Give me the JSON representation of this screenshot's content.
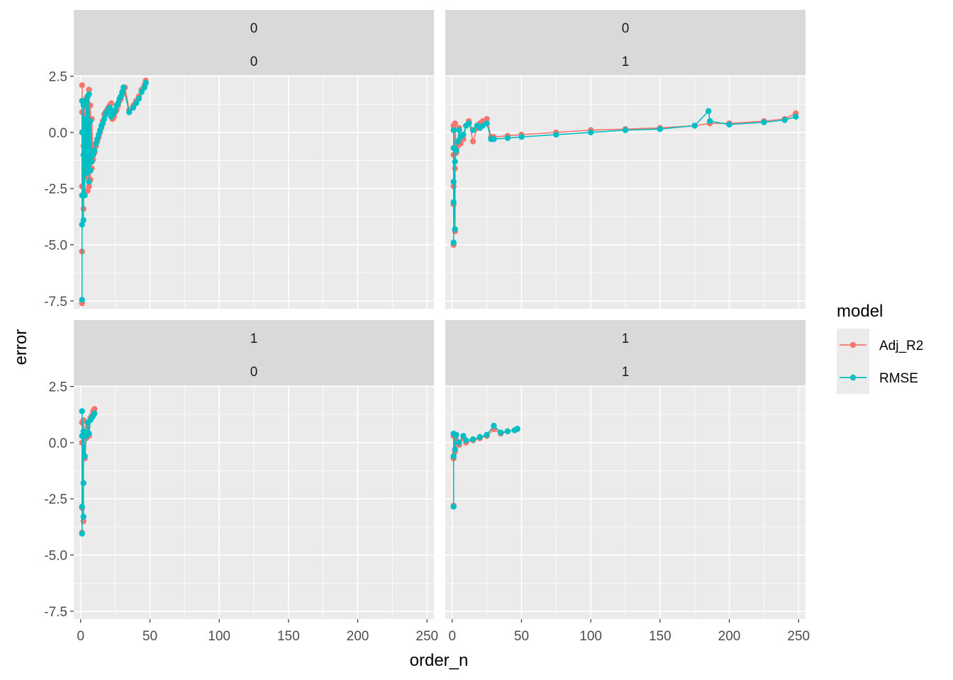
{
  "chart_data": {
    "type": "line",
    "xlabel": "order_n",
    "ylabel": "error",
    "xlim": [
      -5,
      255
    ],
    "ylim": [
      -7.85,
      2.55
    ],
    "x_ticks": [
      0,
      50,
      100,
      150,
      200,
      250
    ],
    "x_tick_labels": [
      "0",
      "50",
      "100",
      "150",
      "200",
      "250"
    ],
    "y_ticks": [
      -7.5,
      -5.0,
      -2.5,
      0.0,
      2.5
    ],
    "y_tick_labels": [
      "-7.5",
      "-5.0",
      "-2.5",
      "0.0",
      "2.5"
    ],
    "grid": true,
    "legend": {
      "title": "model",
      "placement": "right",
      "entries": [
        {
          "name": "Adj_R2",
          "color": "#F8766D"
        },
        {
          "name": "RMSE",
          "color": "#00BFC4"
        }
      ]
    },
    "panels": [
      {
        "row_label_top": "0",
        "row_label_bottom": "0",
        "series": [
          {
            "name": "Adj_R2",
            "color": "#F8766D",
            "points": [
              [
                1,
                -7.6
              ],
              [
                1,
                -5.3
              ],
              [
                1,
                -2.4
              ],
              [
                1,
                0.9
              ],
              [
                1,
                2.1
              ],
              [
                2,
                -3.4
              ],
              [
                2,
                -0.6
              ],
              [
                2,
                1.3
              ],
              [
                3,
                -2.0
              ],
              [
                3,
                1.2
              ],
              [
                4,
                -1.3
              ],
              [
                4,
                1.5
              ],
              [
                5,
                -2.6
              ],
              [
                5,
                -0.4
              ],
              [
                5,
                1.6
              ],
              [
                6,
                -2.4
              ],
              [
                6,
                1.9
              ],
              [
                7,
                -2.1
              ],
              [
                7,
                1.2
              ],
              [
                8,
                -1.6
              ],
              [
                8,
                0.6
              ],
              [
                9,
                -1.2
              ],
              [
                10,
                -0.9
              ],
              [
                11,
                -0.6
              ],
              [
                12,
                -0.4
              ],
              [
                13,
                -0.2
              ],
              [
                14,
                0.0
              ],
              [
                15,
                0.2
              ],
              [
                16,
                0.5
              ],
              [
                17,
                0.8
              ],
              [
                18,
                0.9
              ],
              [
                19,
                1.0
              ],
              [
                20,
                1.1
              ],
              [
                21,
                1.2
              ],
              [
                22,
                1.3
              ],
              [
                23,
                0.6
              ],
              [
                24,
                0.7
              ],
              [
                25,
                0.9
              ],
              [
                26,
                1.0
              ],
              [
                27,
                1.2
              ],
              [
                28,
                1.4
              ],
              [
                29,
                1.5
              ],
              [
                30,
                1.7
              ],
              [
                31,
                1.9
              ],
              [
                32,
                2.0
              ],
              [
                35,
                1.0
              ],
              [
                38,
                1.2
              ],
              [
                40,
                1.4
              ],
              [
                42,
                1.6
              ],
              [
                44,
                1.9
              ],
              [
                46,
                2.1
              ],
              [
                47,
                2.3
              ]
            ]
          },
          {
            "name": "RMSE",
            "color": "#00BFC4",
            "points": [
              [
                1,
                -7.45
              ],
              [
                1,
                -4.1
              ],
              [
                1,
                -2.8
              ],
              [
                1,
                0.0
              ],
              [
                1,
                1.4
              ],
              [
                2,
                -3.9
              ],
              [
                2,
                -1.0
              ],
              [
                2,
                1.2
              ],
              [
                3,
                -2.8
              ],
              [
                3,
                0.6
              ],
              [
                4,
                -1.8
              ],
              [
                4,
                1.4
              ],
              [
                5,
                -1.5
              ],
              [
                5,
                1.6
              ],
              [
                6,
                -2.2
              ],
              [
                6,
                1.7
              ],
              [
                7,
                -1.7
              ],
              [
                7,
                0.5
              ],
              [
                8,
                -1.3
              ],
              [
                9,
                -1.0
              ],
              [
                10,
                -0.8
              ],
              [
                11,
                -0.5
              ],
              [
                12,
                -0.3
              ],
              [
                13,
                -0.1
              ],
              [
                14,
                0.1
              ],
              [
                15,
                0.3
              ],
              [
                16,
                0.4
              ],
              [
                17,
                0.6
              ],
              [
                18,
                0.8
              ],
              [
                19,
                0.9
              ],
              [
                20,
                1.0
              ],
              [
                21,
                1.1
              ],
              [
                22,
                0.7
              ],
              [
                23,
                0.8
              ],
              [
                24,
                0.9
              ],
              [
                25,
                1.0
              ],
              [
                26,
                1.2
              ],
              [
                27,
                1.3
              ],
              [
                28,
                1.5
              ],
              [
                29,
                1.6
              ],
              [
                30,
                1.8
              ],
              [
                31,
                2.0
              ],
              [
                35,
                0.9
              ],
              [
                38,
                1.1
              ],
              [
                40,
                1.3
              ],
              [
                42,
                1.5
              ],
              [
                44,
                1.8
              ],
              [
                46,
                2.0
              ],
              [
                47,
                2.2
              ]
            ]
          }
        ]
      },
      {
        "row_label_top": "0",
        "row_label_bottom": "1",
        "series": [
          {
            "name": "Adj_R2",
            "color": "#F8766D",
            "points": [
              [
                1,
                -5.0
              ],
              [
                1,
                -3.2
              ],
              [
                1,
                -2.4
              ],
              [
                1,
                -1.0
              ],
              [
                1,
                0.3
              ],
              [
                2,
                -4.4
              ],
              [
                2,
                -1.6
              ],
              [
                2,
                0.4
              ],
              [
                3,
                -0.9
              ],
              [
                4,
                -0.6
              ],
              [
                5,
                0.2
              ],
              [
                6,
                -0.5
              ],
              [
                8,
                -0.3
              ],
              [
                10,
                0.3
              ],
              [
                12,
                0.5
              ],
              [
                15,
                -0.4
              ],
              [
                18,
                0.2
              ],
              [
                20,
                0.4
              ],
              [
                22,
                0.5
              ],
              [
                25,
                0.6
              ],
              [
                28,
                -0.2
              ],
              [
                30,
                -0.2
              ],
              [
                40,
                -0.15
              ],
              [
                50,
                -0.1
              ],
              [
                75,
                0.0
              ],
              [
                100,
                0.1
              ],
              [
                125,
                0.15
              ],
              [
                150,
                0.2
              ],
              [
                175,
                0.3
              ],
              [
                186,
                0.4
              ],
              [
                200,
                0.4
              ],
              [
                225,
                0.5
              ],
              [
                240,
                0.6
              ],
              [
                248,
                0.85
              ]
            ]
          },
          {
            "name": "RMSE",
            "color": "#00BFC4",
            "points": [
              [
                1,
                -4.9
              ],
              [
                1,
                -3.1
              ],
              [
                1,
                -2.2
              ],
              [
                1,
                -0.7
              ],
              [
                1,
                0.1
              ],
              [
                2,
                -4.3
              ],
              [
                2,
                -1.3
              ],
              [
                3,
                -0.8
              ],
              [
                4,
                -0.4
              ],
              [
                5,
                0.1
              ],
              [
                6,
                -0.2
              ],
              [
                8,
                -0.1
              ],
              [
                10,
                0.3
              ],
              [
                12,
                0.4
              ],
              [
                15,
                0.1
              ],
              [
                18,
                0.3
              ],
              [
                20,
                0.2
              ],
              [
                22,
                0.3
              ],
              [
                25,
                0.4
              ],
              [
                28,
                -0.3
              ],
              [
                30,
                -0.3
              ],
              [
                40,
                -0.25
              ],
              [
                50,
                -0.2
              ],
              [
                75,
                -0.1
              ],
              [
                100,
                0.0
              ],
              [
                125,
                0.1
              ],
              [
                150,
                0.15
              ],
              [
                175,
                0.3
              ],
              [
                185,
                0.95
              ],
              [
                186,
                0.5
              ],
              [
                200,
                0.35
              ],
              [
                225,
                0.45
              ],
              [
                240,
                0.55
              ],
              [
                248,
                0.7
              ]
            ]
          }
        ]
      },
      {
        "row_label_top": "1",
        "row_label_bottom": "0",
        "series": [
          {
            "name": "Adj_R2",
            "color": "#F8766D",
            "points": [
              [
                1,
                -4.0
              ],
              [
                1,
                -2.9
              ],
              [
                1,
                0.0
              ],
              [
                1,
                0.9
              ],
              [
                2,
                -3.5
              ],
              [
                2,
                -1.8
              ],
              [
                2,
                1.0
              ],
              [
                3,
                -0.7
              ],
              [
                4,
                0.2
              ],
              [
                5,
                0.7
              ],
              [
                6,
                0.3
              ],
              [
                7,
                1.1
              ],
              [
                8,
                1.2
              ],
              [
                9,
                1.4
              ],
              [
                10,
                1.5
              ]
            ]
          },
          {
            "name": "RMSE",
            "color": "#00BFC4",
            "points": [
              [
                1,
                -4.05
              ],
              [
                1,
                -2.85
              ],
              [
                1,
                0.3
              ],
              [
                1,
                1.4
              ],
              [
                2,
                -3.3
              ],
              [
                2,
                -1.8
              ],
              [
                2,
                0.5
              ],
              [
                3,
                -0.6
              ],
              [
                4,
                0.3
              ],
              [
                5,
                0.9
              ],
              [
                6,
                0.4
              ],
              [
                7,
                1.0
              ],
              [
                8,
                1.1
              ],
              [
                9,
                1.2
              ],
              [
                10,
                1.3
              ]
            ]
          }
        ]
      },
      {
        "row_label_top": "1",
        "row_label_bottom": "1",
        "series": [
          {
            "name": "Adj_R2",
            "color": "#F8766D",
            "points": [
              [
                1,
                -2.8
              ],
              [
                1,
                -0.7
              ],
              [
                1,
                0.3
              ],
              [
                2,
                -0.4
              ],
              [
                3,
                0.1
              ],
              [
                5,
                -0.1
              ],
              [
                8,
                0.2
              ],
              [
                10,
                0.0
              ],
              [
                15,
                0.1
              ],
              [
                20,
                0.2
              ],
              [
                25,
                0.3
              ],
              [
                30,
                0.6
              ],
              [
                35,
                0.4
              ],
              [
                40,
                0.5
              ],
              [
                45,
                0.55
              ],
              [
                47,
                0.6
              ]
            ]
          },
          {
            "name": "RMSE",
            "color": "#00BFC4",
            "points": [
              [
                1,
                -2.85
              ],
              [
                1,
                -0.6
              ],
              [
                1,
                0.4
              ],
              [
                2,
                -0.3
              ],
              [
                3,
                0.35
              ],
              [
                5,
                0.0
              ],
              [
                8,
                0.3
              ],
              [
                10,
                0.1
              ],
              [
                15,
                0.15
              ],
              [
                20,
                0.25
              ],
              [
                25,
                0.35
              ],
              [
                30,
                0.75
              ],
              [
                35,
                0.45
              ],
              [
                40,
                0.5
              ],
              [
                45,
                0.55
              ],
              [
                47,
                0.62
              ]
            ]
          }
        ]
      }
    ]
  }
}
